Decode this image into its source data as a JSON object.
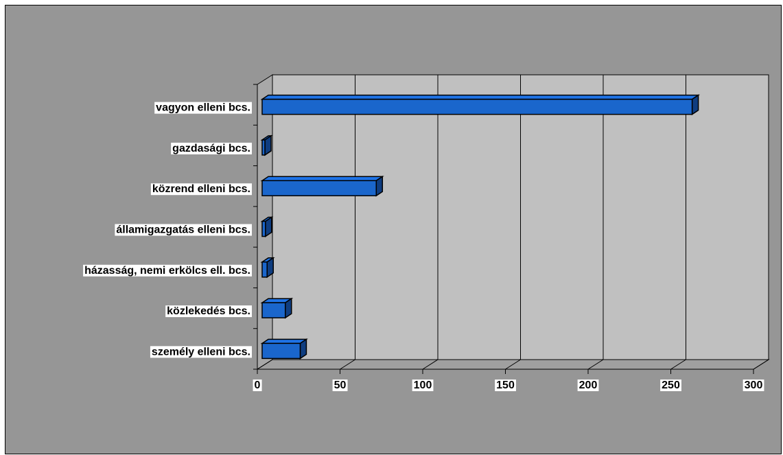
{
  "chart_data": {
    "type": "bar",
    "orientation": "horizontal",
    "three_d": true,
    "title": "",
    "xlabel": "",
    "ylabel": "",
    "categories": [
      "vagyon elleni bcs.",
      "gazdasági bcs.",
      "közrend elleni bcs.",
      "államigazgatás elleni bcs.",
      "házasság, nemi erkölcs ell. bcs.",
      "közlekedés bcs.",
      "személy elleni bcs."
    ],
    "values": [
      260,
      1,
      69,
      2,
      3,
      14,
      23
    ],
    "xlim": [
      0,
      300
    ],
    "ticks": [
      "0",
      "50",
      "100",
      "150",
      "200",
      "250",
      "300"
    ],
    "grid": true,
    "legend": "none",
    "colors": {
      "bar_front": "#1a66cc",
      "bar_top": "#1e73e6",
      "bar_side": "#0f3d80",
      "plot_wall": "#c0c0c0",
      "chart_background": "#969696",
      "label_background": "#ffffff"
    }
  }
}
